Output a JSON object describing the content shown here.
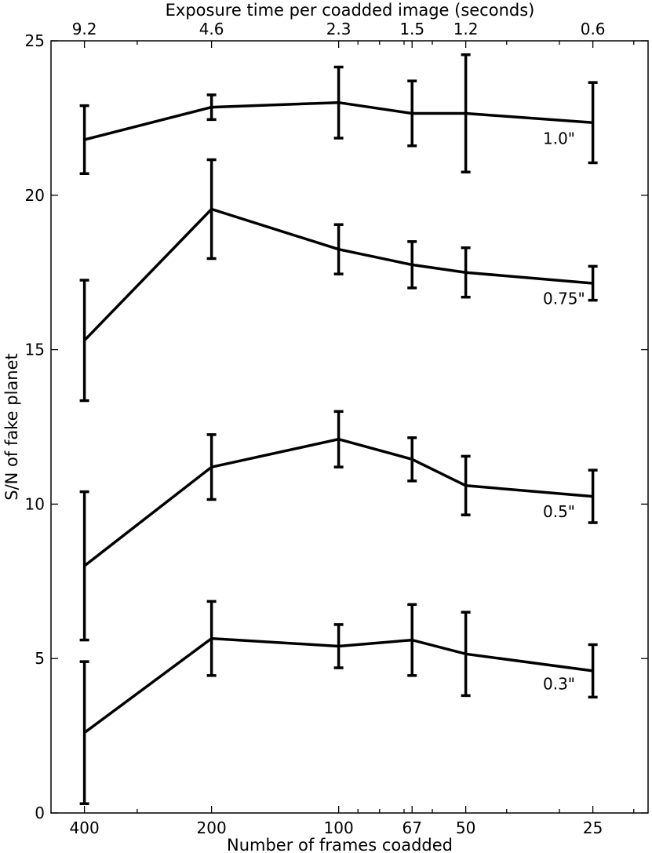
{
  "chart_data": {
    "type": "line",
    "title": "",
    "xlabel": "Number of frames coadded",
    "ylabel": "S/N of fake planet",
    "top_xlabel": "Exposure time per coadded image (seconds)",
    "x_scale": "log-reversed",
    "xlim": [
      480,
      18.5
    ],
    "ylim": [
      0,
      25
    ],
    "x": [
      400,
      200,
      100,
      67,
      50,
      25
    ],
    "x_tick_labels": [
      "400",
      "200",
      "100",
      "67",
      "50",
      "25"
    ],
    "top_tick_labels": [
      "9.2",
      "4.6",
      "2.3",
      "1.5",
      "1.2",
      "0.6"
    ],
    "y_ticks": [
      0,
      5,
      10,
      15,
      20,
      25
    ],
    "y_tick_labels": [
      "0",
      "5",
      "10",
      "15",
      "20",
      "25"
    ],
    "minor_x_ticks": [
      300,
      90,
      80,
      70,
      60,
      40,
      30,
      20
    ],
    "series": [
      {
        "name": "1.0\"",
        "values": [
          21.8,
          22.85,
          23.0,
          22.65,
          22.65,
          22.35
        ],
        "errors": [
          1.1,
          0.4,
          1.15,
          1.05,
          1.9,
          1.3
        ]
      },
      {
        "name": "0.75\"",
        "values": [
          15.3,
          19.55,
          18.25,
          17.75,
          17.5,
          17.15
        ],
        "errors": [
          1.95,
          1.6,
          0.8,
          0.75,
          0.8,
          0.55
        ]
      },
      {
        "name": "0.5\"",
        "values": [
          8.0,
          11.2,
          12.1,
          11.45,
          10.6,
          10.25
        ],
        "errors": [
          2.4,
          1.05,
          0.9,
          0.7,
          0.95,
          0.85
        ]
      },
      {
        "name": "0.3\"",
        "values": [
          2.6,
          5.65,
          5.4,
          5.6,
          5.15,
          4.6
        ],
        "errors": [
          2.3,
          1.2,
          0.7,
          1.15,
          1.35,
          0.85
        ]
      }
    ],
    "annotations": [
      "1.0\"",
      "0.75\"",
      "0.5\"",
      "0.3\""
    ],
    "grid": false,
    "legend": "none"
  }
}
